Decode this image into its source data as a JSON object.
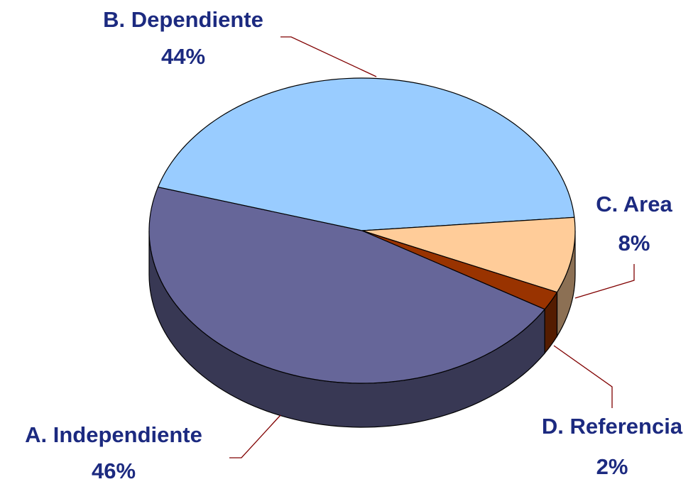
{
  "chart_data": {
    "type": "pie",
    "three_d": true,
    "categories": [
      "A. Independiente",
      "B. Dependiente",
      "C. Area",
      "D. Referencia"
    ],
    "values": [
      46,
      44,
      8,
      2
    ],
    "value_labels": [
      "46%",
      "44%",
      "8%",
      "2%"
    ],
    "colors": [
      "#666699",
      "#99ccff",
      "#ffcc99",
      "#993300"
    ]
  }
}
